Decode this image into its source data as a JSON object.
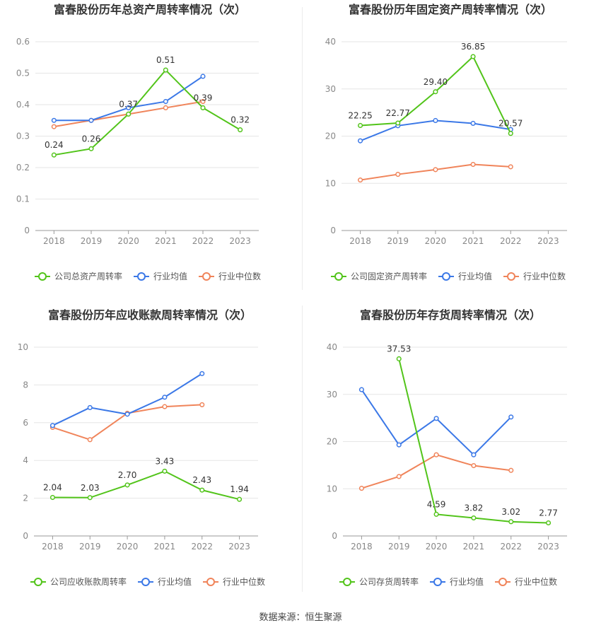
{
  "source": "数据来源：恒生聚源",
  "chart_data": [
    {
      "type": "line",
      "title": "富春股份历年总资产周转率情况（次）",
      "categories": [
        "2018",
        "2019",
        "2020",
        "2021",
        "2022",
        "2023"
      ],
      "ylim": [
        0,
        0.6
      ],
      "yticks": [
        "0",
        "0.1",
        "0.2",
        "0.3",
        "0.4",
        "0.5",
        "0.6"
      ],
      "yticks_values": [
        0,
        0.1,
        0.2,
        0.3,
        0.4,
        0.5,
        0.6
      ],
      "series": [
        {
          "name": "公司总资产周转率",
          "color": "#52c41a",
          "values": [
            0.24,
            0.26,
            0.37,
            0.51,
            0.39,
            0.32
          ],
          "labels": [
            "0.24",
            "0.26",
            "0.37",
            "0.51",
            "0.39",
            "0.32"
          ]
        },
        {
          "name": "行业均值",
          "color": "#3b78e7",
          "values": [
            0.35,
            0.35,
            0.39,
            0.41,
            0.49,
            null
          ]
        },
        {
          "name": "行业中位数",
          "color": "#f0845a",
          "values": [
            0.33,
            0.35,
            0.37,
            0.39,
            0.41,
            null
          ]
        }
      ]
    },
    {
      "type": "line",
      "title": "富春股份历年固定资产周转率情况（次）",
      "categories": [
        "2018",
        "2019",
        "2020",
        "2021",
        "2022",
        "2023"
      ],
      "ylim": [
        0,
        40
      ],
      "yticks": [
        "0",
        "10",
        "20",
        "30",
        "40"
      ],
      "yticks_values": [
        0,
        10,
        20,
        30,
        40
      ],
      "series": [
        {
          "name": "公司固定资产周转率",
          "color": "#52c41a",
          "values": [
            22.25,
            22.77,
            29.4,
            36.85,
            20.57,
            null
          ],
          "labels": [
            "22.25",
            "22.77",
            "29.40",
            "36.85",
            "20.57",
            ""
          ]
        },
        {
          "name": "行业均值",
          "color": "#3b78e7",
          "values": [
            19.0,
            22.2,
            23.3,
            22.7,
            21.4,
            null
          ]
        },
        {
          "name": "行业中位数",
          "color": "#f0845a",
          "values": [
            10.7,
            11.9,
            12.9,
            14.0,
            13.5,
            null
          ]
        }
      ]
    },
    {
      "type": "line",
      "title": "富春股份历年应收账款周转率情况（次）",
      "categories": [
        "2018",
        "2019",
        "2020",
        "2021",
        "2022",
        "2023"
      ],
      "ylim": [
        0,
        10
      ],
      "yticks": [
        "0",
        "2",
        "4",
        "6",
        "8",
        "10"
      ],
      "yticks_values": [
        0,
        2,
        4,
        6,
        8,
        10
      ],
      "series": [
        {
          "name": "公司应收账款周转率",
          "color": "#52c41a",
          "values": [
            2.04,
            2.03,
            2.7,
            3.43,
            2.43,
            1.94
          ],
          "labels": [
            "2.04",
            "2.03",
            "2.70",
            "3.43",
            "2.43",
            "1.94"
          ]
        },
        {
          "name": "行业均值",
          "color": "#3b78e7",
          "values": [
            5.85,
            6.8,
            6.45,
            7.35,
            8.6,
            null
          ]
        },
        {
          "name": "行业中位数",
          "color": "#f0845a",
          "values": [
            5.75,
            5.1,
            6.5,
            6.85,
            6.95,
            null
          ]
        }
      ]
    },
    {
      "type": "line",
      "title": "富春股份历年存货周转率情况（次）",
      "categories": [
        "2018",
        "2019",
        "2020",
        "2021",
        "2022",
        "2023"
      ],
      "ylim": [
        0,
        40
      ],
      "yticks": [
        "0",
        "10",
        "20",
        "30",
        "40"
      ],
      "yticks_values": [
        0,
        10,
        20,
        30,
        40
      ],
      "series": [
        {
          "name": "公司存货周转率",
          "color": "#52c41a",
          "values": [
            null,
            37.53,
            4.59,
            3.82,
            3.02,
            2.77
          ],
          "labels": [
            "",
            "37.53",
            "4.59",
            "3.82",
            "3.02",
            "2.77"
          ]
        },
        {
          "name": "行业均值",
          "color": "#3b78e7",
          "values": [
            31.0,
            19.3,
            24.9,
            17.2,
            25.2,
            null
          ]
        },
        {
          "name": "行业中位数",
          "color": "#f0845a",
          "values": [
            10.1,
            12.6,
            17.2,
            14.9,
            13.9,
            null
          ]
        }
      ]
    }
  ]
}
